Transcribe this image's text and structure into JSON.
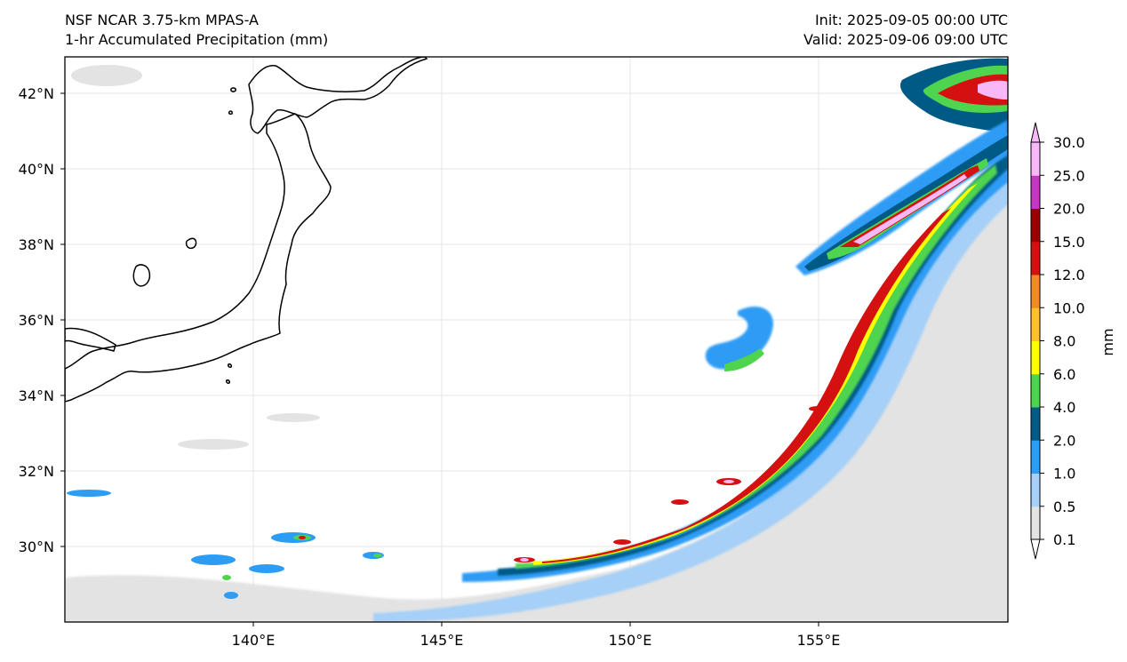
{
  "header": {
    "model": "NSF NCAR 3.75-km MPAS-A",
    "field": "1-hr Accumulated Precipitation (mm)",
    "init": "Init: 2025-09-05 00:00 UTC",
    "valid": "Valid: 2025-09-06 09:00 UTC"
  },
  "map": {
    "lat_ticks": [
      "42°N",
      "40°N",
      "38°N",
      "36°N",
      "34°N",
      "32°N",
      "30°N"
    ],
    "lon_ticks": [
      "140°E",
      "145°E",
      "150°E",
      "155°E"
    ],
    "extent": {
      "lon_min": 135,
      "lon_max": 160,
      "lat_min": 28,
      "lat_max": 43
    },
    "gridlines": true,
    "land_outline": "Japan / Hokkaido / Honshu coastline",
    "precip_band_description": ""
  },
  "colorbar": {
    "label": "mm",
    "levels": [
      "0.1",
      "0.5",
      "1.0",
      "2.0",
      "4.0",
      "6.0",
      "8.0",
      "10.0",
      "12.0",
      "15.0",
      "20.0",
      "25.0",
      "30.0"
    ],
    "colors": [
      "#e3e3e3",
      "#a6d0f7",
      "#2d9cf5",
      "#005a86",
      "#4fd44f",
      "#ffff00",
      "#ffc02e",
      "#f08c24",
      "#d41010",
      "#9a0000",
      "#c238c2",
      "#f8b8f8"
    ]
  }
}
